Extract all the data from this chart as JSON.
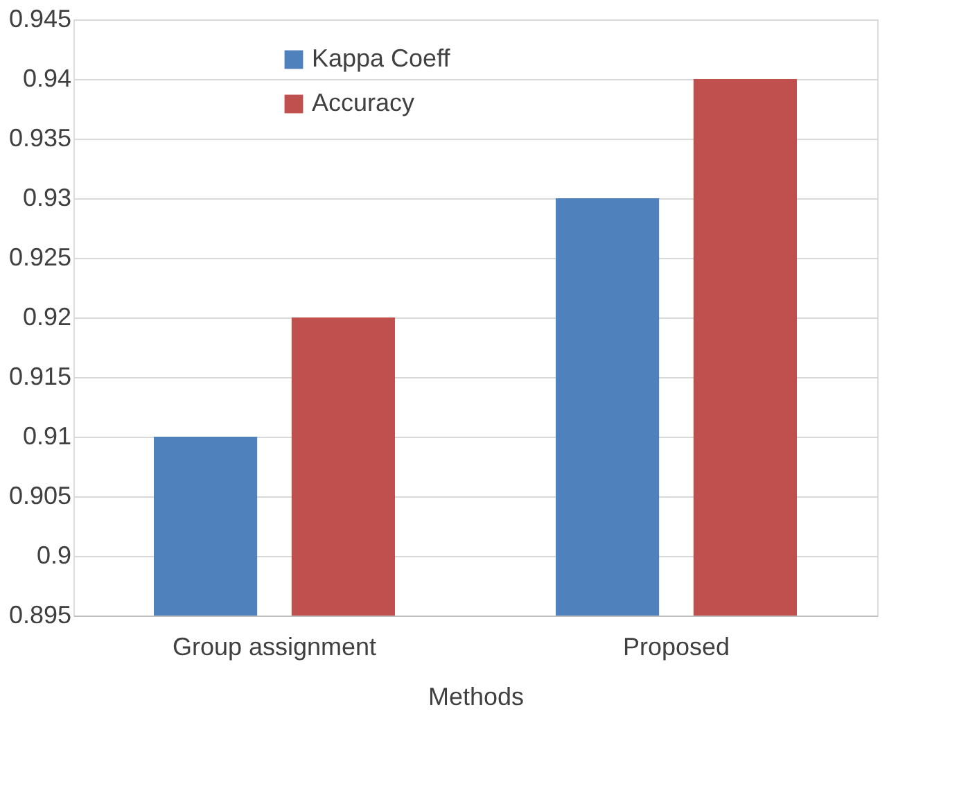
{
  "chart_data": {
    "type": "bar",
    "xlabel": "Methods",
    "categories": [
      "Group assignment",
      "Proposed"
    ],
    "series": [
      {
        "name": "Kappa Coeff",
        "color": "#4f81bd",
        "values": [
          0.91,
          0.93
        ]
      },
      {
        "name": "Accuracy",
        "color": "#c0504d",
        "values": [
          0.92,
          0.94
        ]
      }
    ],
    "ylim": [
      0.895,
      0.945
    ],
    "yticks": [
      0.895,
      0.9,
      0.905,
      0.91,
      0.915,
      0.92,
      0.925,
      0.93,
      0.935,
      0.94,
      0.945
    ],
    "grid": "y",
    "legend": "top"
  }
}
